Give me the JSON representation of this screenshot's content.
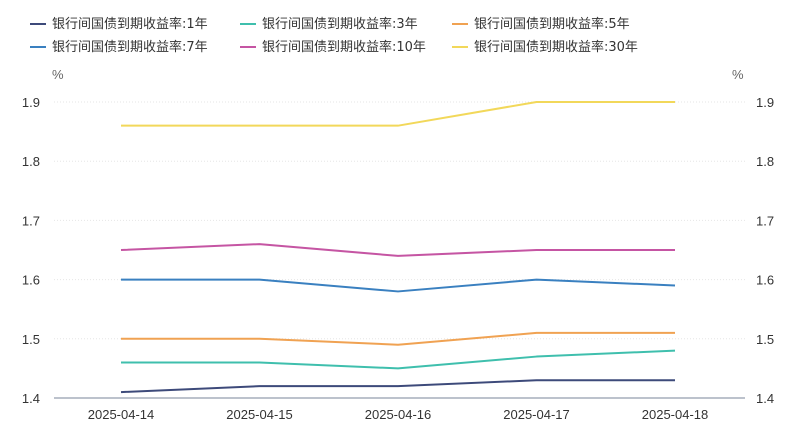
{
  "chart_data": {
    "type": "line",
    "categories": [
      "2025-04-14",
      "2025-04-15",
      "2025-04-16",
      "2025-04-17",
      "2025-04-18"
    ],
    "series": [
      {
        "name": "银行间国债到期收益率:1年",
        "color": "#3d4a7a",
        "values": [
          1.41,
          1.42,
          1.42,
          1.43,
          1.43
        ]
      },
      {
        "name": "银行间国债到期收益率:3年",
        "color": "#3fbfad",
        "values": [
          1.46,
          1.46,
          1.45,
          1.47,
          1.48
        ]
      },
      {
        "name": "银行间国债到期收益率:5年",
        "color": "#f0a252",
        "values": [
          1.5,
          1.5,
          1.49,
          1.51,
          1.51
        ]
      },
      {
        "name": "银行间国债到期收益率:7年",
        "color": "#3a80c0",
        "values": [
          1.6,
          1.6,
          1.58,
          1.6,
          1.59
        ]
      },
      {
        "name": "银行间国债到期收益率:10年",
        "color": "#c555a3",
        "values": [
          1.65,
          1.66,
          1.64,
          1.65,
          1.65
        ]
      },
      {
        "name": "银行间国债到期收益率:30年",
        "color": "#f2d85a",
        "values": [
          1.86,
          1.86,
          1.86,
          1.9,
          1.9
        ]
      }
    ],
    "ylim": [
      1.4,
      1.9
    ],
    "yticks": [
      "1.4",
      "1.5",
      "1.6",
      "1.7",
      "1.8",
      "1.9"
    ],
    "y_unit_left": "%",
    "y_unit_right": "%",
    "grid": true,
    "legend_position": "top-left"
  }
}
